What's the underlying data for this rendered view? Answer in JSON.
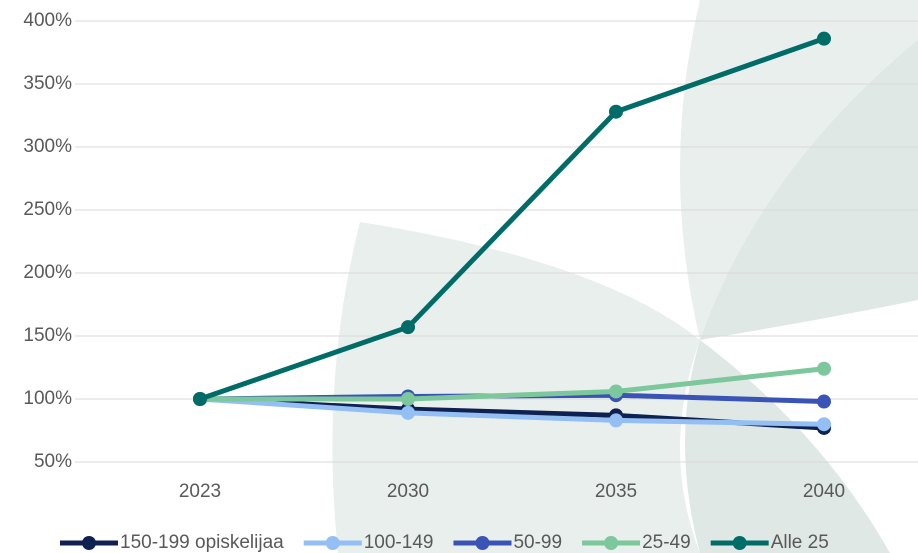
{
  "chart_data": {
    "type": "line",
    "categories": [
      "2023",
      "2030",
      "2035",
      "2040"
    ],
    "series": [
      {
        "name": "150-199 opiskelijaa",
        "color": "#0e2150",
        "values": [
          100,
          92,
          87,
          77
        ]
      },
      {
        "name": "100-149",
        "color": "#93bff5",
        "values": [
          100,
          89,
          83,
          80
        ]
      },
      {
        "name": "50-99",
        "color": "#3953b6",
        "values": [
          100,
          102,
          103,
          98
        ]
      },
      {
        "name": "25-49",
        "color": "#7cc79b",
        "values": [
          100,
          100,
          106,
          124
        ]
      },
      {
        "name": "Alle 25",
        "color": "#006c68",
        "values": [
          100,
          157,
          328,
          386
        ]
      }
    ],
    "ylim": [
      50,
      400
    ],
    "yticks": [
      {
        "value": 50,
        "label": "50%"
      },
      {
        "value": 100,
        "label": "100%"
      },
      {
        "value": 150,
        "label": "150%"
      },
      {
        "value": 200,
        "label": "200%"
      },
      {
        "value": 250,
        "label": "250%"
      },
      {
        "value": 300,
        "label": "300%"
      },
      {
        "value": 350,
        "label": "350%"
      },
      {
        "value": 400,
        "label": "400%"
      }
    ],
    "grid": true,
    "legend": "bottom"
  }
}
